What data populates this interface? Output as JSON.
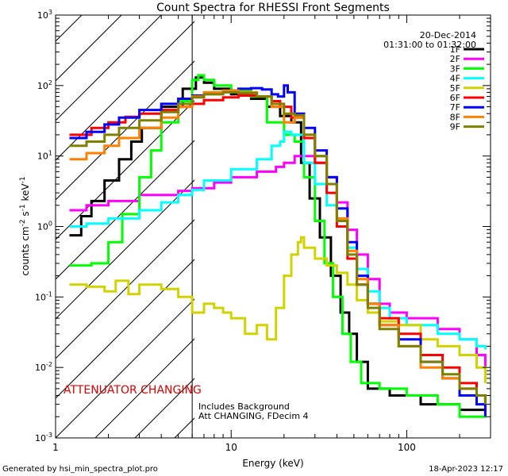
{
  "chart_data": {
    "type": "line",
    "title": "Count Spectra for RHESSI Front Segments",
    "xlabel": "Energy (keV)",
    "ylabel_base": "counts cm",
    "ylabel_exp1": "-2",
    "ylabel_mid1": " s",
    "ylabel_exp2": "-1",
    "ylabel_mid2": " keV",
    "ylabel_exp3": "-1",
    "xscale": "log",
    "yscale": "log",
    "xlim": [
      1,
      300
    ],
    "ylim": [
      0.001,
      1000
    ],
    "x_ticks": [
      {
        "value": 1,
        "label": "1"
      },
      {
        "value": 10,
        "label": "10"
      },
      {
        "value": 100,
        "label": "100"
      }
    ],
    "y_ticks": [
      {
        "value": 0.001,
        "base": "10",
        "exp": "-3"
      },
      {
        "value": 0.01,
        "base": "10",
        "exp": "-2"
      },
      {
        "value": 0.1,
        "base": "10",
        "exp": "-1"
      },
      {
        "value": 1,
        "base": "10",
        "exp": "0"
      },
      {
        "value": 10,
        "base": "10",
        "exp": "1"
      },
      {
        "value": 100,
        "base": "10",
        "exp": "2"
      },
      {
        "value": 1000,
        "base": "10",
        "exp": "3"
      }
    ],
    "attenuator_line_kev": 6,
    "legend_position": "top-right",
    "series": [
      {
        "name": "1F",
        "color": "#000000",
        "points": [
          [
            1.2,
            0.75
          ],
          [
            1.4,
            1.4
          ],
          [
            1.6,
            2.3
          ],
          [
            1.9,
            4.5
          ],
          [
            2.3,
            9
          ],
          [
            2.7,
            16
          ],
          [
            3.1,
            25
          ],
          [
            4,
            50
          ],
          [
            5.3,
            90
          ],
          [
            6.3,
            130
          ],
          [
            7,
            110
          ],
          [
            8,
            90
          ],
          [
            10,
            75
          ],
          [
            13,
            65
          ],
          [
            16,
            50
          ],
          [
            19,
            37
          ],
          [
            22,
            30
          ],
          [
            25,
            8
          ],
          [
            28,
            2.5
          ],
          [
            32,
            0.7
          ],
          [
            37,
            0.2
          ],
          [
            42,
            0.06
          ],
          [
            47,
            0.03
          ],
          [
            52,
            0.012
          ],
          [
            60,
            0.005
          ],
          [
            80,
            0.004
          ],
          [
            120,
            0.003
          ],
          [
            200,
            0.0025
          ],
          [
            280,
            0.0025
          ]
        ]
      },
      {
        "name": "2F",
        "color": "#ff00ff",
        "points": [
          [
            1.2,
            1.7
          ],
          [
            1.5,
            2.0
          ],
          [
            2,
            2.3
          ],
          [
            3,
            2.8
          ],
          [
            5,
            3.2
          ],
          [
            6,
            3.5
          ],
          [
            8,
            4.2
          ],
          [
            10,
            5
          ],
          [
            14,
            6
          ],
          [
            18,
            7
          ],
          [
            20,
            8
          ],
          [
            23,
            10
          ],
          [
            26,
            10
          ],
          [
            30,
            8
          ],
          [
            35,
            5
          ],
          [
            40,
            2.2
          ],
          [
            46,
            0.9
          ],
          [
            52,
            0.4
          ],
          [
            60,
            0.18
          ],
          [
            70,
            0.08
          ],
          [
            80,
            0.06
          ],
          [
            100,
            0.05
          ],
          [
            150,
            0.035
          ],
          [
            200,
            0.025
          ],
          [
            250,
            0.015
          ],
          [
            280,
            0.01
          ]
        ]
      },
      {
        "name": "3F",
        "color": "#00ff00",
        "points": [
          [
            1.2,
            0.28
          ],
          [
            1.6,
            0.3
          ],
          [
            2,
            0.6
          ],
          [
            2.4,
            1.5
          ],
          [
            3,
            5
          ],
          [
            3.5,
            12
          ],
          [
            4,
            30
          ],
          [
            5,
            60
          ],
          [
            6,
            120
          ],
          [
            6.5,
            140
          ],
          [
            7,
            120
          ],
          [
            8,
            100
          ],
          [
            10,
            85
          ],
          [
            13,
            70
          ],
          [
            16,
            30
          ],
          [
            20,
            20
          ],
          [
            23,
            16
          ],
          [
            26,
            5
          ],
          [
            30,
            1.2
          ],
          [
            34,
            0.3
          ],
          [
            38,
            0.1
          ],
          [
            43,
            0.03
          ],
          [
            48,
            0.012
          ],
          [
            55,
            0.006
          ],
          [
            70,
            0.005
          ],
          [
            100,
            0.004
          ],
          [
            150,
            0.003
          ],
          [
            200,
            0.002
          ],
          [
            280,
            0.0022
          ]
        ]
      },
      {
        "name": "4F",
        "color": "#00ffff",
        "points": [
          [
            1.2,
            1.0
          ],
          [
            1.5,
            1.1
          ],
          [
            2,
            1.3
          ],
          [
            3,
            1.7
          ],
          [
            4,
            2.2
          ],
          [
            5,
            2.8
          ],
          [
            6,
            3.3
          ],
          [
            7,
            4.5
          ],
          [
            10,
            6.5
          ],
          [
            14,
            9
          ],
          [
            17,
            14
          ],
          [
            19,
            16
          ],
          [
            20,
            22
          ],
          [
            22,
            20
          ],
          [
            26,
            8
          ],
          [
            30,
            4
          ],
          [
            35,
            2
          ],
          [
            40,
            1.0
          ],
          [
            46,
            0.5
          ],
          [
            52,
            0.25
          ],
          [
            60,
            0.12
          ],
          [
            70,
            0.07
          ],
          [
            80,
            0.05
          ],
          [
            100,
            0.04
          ],
          [
            150,
            0.03
          ],
          [
            200,
            0.025
          ],
          [
            250,
            0.02
          ],
          [
            280,
            0.018
          ]
        ]
      },
      {
        "name": "5F",
        "color": "#d2d200",
        "points": [
          [
            1.2,
            0.15
          ],
          [
            1.5,
            0.14
          ],
          [
            1.9,
            0.12
          ],
          [
            2.2,
            0.17
          ],
          [
            2.6,
            0.11
          ],
          [
            3,
            0.15
          ],
          [
            3.5,
            0.15
          ],
          [
            4,
            0.13
          ],
          [
            5,
            0.1
          ],
          [
            6,
            0.06
          ],
          [
            7,
            0.08
          ],
          [
            8,
            0.07
          ],
          [
            9,
            0.06
          ],
          [
            10,
            0.05
          ],
          [
            12,
            0.03
          ],
          [
            14,
            0.04
          ],
          [
            16,
            0.025
          ],
          [
            18,
            0.07
          ],
          [
            20,
            0.2
          ],
          [
            22,
            0.4
          ],
          [
            24,
            0.6
          ],
          [
            25,
            0.7
          ],
          [
            26,
            0.5
          ],
          [
            30,
            0.35
          ],
          [
            35,
            0.28
          ],
          [
            40,
            0.22
          ],
          [
            46,
            0.15
          ],
          [
            52,
            0.09
          ],
          [
            60,
            0.06
          ],
          [
            70,
            0.045
          ],
          [
            90,
            0.04
          ],
          [
            120,
            0.025
          ],
          [
            150,
            0.02
          ],
          [
            200,
            0.015
          ],
          [
            250,
            0.01
          ],
          [
            280,
            0.006
          ]
        ]
      },
      {
        "name": "6F",
        "color": "#ff0000",
        "points": [
          [
            1.2,
            20
          ],
          [
            1.6,
            25
          ],
          [
            2,
            30
          ],
          [
            2.5,
            36
          ],
          [
            3,
            40
          ],
          [
            4,
            45
          ],
          [
            5,
            50
          ],
          [
            6,
            55
          ],
          [
            7,
            62
          ],
          [
            9,
            68
          ],
          [
            11,
            72
          ],
          [
            14,
            70
          ],
          [
            17,
            60
          ],
          [
            19,
            50
          ],
          [
            22,
            35
          ],
          [
            26,
            18
          ],
          [
            30,
            8
          ],
          [
            35,
            3
          ],
          [
            40,
            1.0
          ],
          [
            46,
            0.35
          ],
          [
            52,
            0.15
          ],
          [
            60,
            0.08
          ],
          [
            70,
            0.05
          ],
          [
            90,
            0.03
          ],
          [
            120,
            0.015
          ],
          [
            160,
            0.01
          ],
          [
            200,
            0.006
          ],
          [
            250,
            0.004
          ],
          [
            280,
            0.003
          ]
        ]
      },
      {
        "name": "7F",
        "color": "#0000ff",
        "points": [
          [
            1.2,
            18
          ],
          [
            1.5,
            22
          ],
          [
            1.9,
            28
          ],
          [
            2.3,
            35
          ],
          [
            3,
            45
          ],
          [
            4,
            55
          ],
          [
            5,
            65
          ],
          [
            6,
            72
          ],
          [
            7,
            78
          ],
          [
            9,
            85
          ],
          [
            11,
            90
          ],
          [
            13,
            92
          ],
          [
            15,
            88
          ],
          [
            17,
            75
          ],
          [
            18.5,
            70
          ],
          [
            20,
            100
          ],
          [
            21,
            80
          ],
          [
            23,
            40
          ],
          [
            26,
            25
          ],
          [
            30,
            12
          ],
          [
            35,
            5
          ],
          [
            40,
            1.8
          ],
          [
            46,
            0.6
          ],
          [
            52,
            0.2
          ],
          [
            60,
            0.08
          ],
          [
            70,
            0.04
          ],
          [
            90,
            0.025
          ],
          [
            120,
            0.012
          ],
          [
            160,
            0.007
          ],
          [
            200,
            0.004
          ],
          [
            250,
            0.003
          ],
          [
            280,
            0.002
          ]
        ]
      },
      {
        "name": "8F",
        "color": "#ff8000",
        "points": [
          [
            1.2,
            9
          ],
          [
            1.5,
            11
          ],
          [
            1.9,
            14
          ],
          [
            2.3,
            18
          ],
          [
            3,
            25
          ],
          [
            4,
            35
          ],
          [
            5,
            50
          ],
          [
            6,
            70
          ],
          [
            7,
            80
          ],
          [
            9,
            85
          ],
          [
            11,
            80
          ],
          [
            14,
            70
          ],
          [
            17,
            50
          ],
          [
            20,
            30
          ],
          [
            23,
            35
          ],
          [
            26,
            20
          ],
          [
            30,
            10
          ],
          [
            35,
            4
          ],
          [
            40,
            1.3
          ],
          [
            46,
            0.45
          ],
          [
            52,
            0.18
          ],
          [
            60,
            0.08
          ],
          [
            70,
            0.04
          ],
          [
            90,
            0.02
          ],
          [
            120,
            0.01
          ],
          [
            160,
            0.007
          ],
          [
            200,
            0.005
          ],
          [
            250,
            0.004
          ],
          [
            280,
            0.004
          ]
        ]
      },
      {
        "name": "9F",
        "color": "#808000",
        "points": [
          [
            1.2,
            14
          ],
          [
            1.5,
            16
          ],
          [
            1.9,
            20
          ],
          [
            2.3,
            25
          ],
          [
            3,
            32
          ],
          [
            4,
            42
          ],
          [
            5,
            55
          ],
          [
            6,
            68
          ],
          [
            7,
            75
          ],
          [
            9,
            80
          ],
          [
            11,
            78
          ],
          [
            14,
            70
          ],
          [
            17,
            55
          ],
          [
            20,
            40
          ],
          [
            23,
            38
          ],
          [
            26,
            20
          ],
          [
            30,
            10
          ],
          [
            35,
            4
          ],
          [
            40,
            1.2
          ],
          [
            46,
            0.4
          ],
          [
            52,
            0.15
          ],
          [
            60,
            0.07
          ],
          [
            70,
            0.035
          ],
          [
            90,
            0.02
          ],
          [
            120,
            0.012
          ],
          [
            160,
            0.008
          ],
          [
            200,
            0.005
          ],
          [
            250,
            0.004
          ],
          [
            280,
            0.003
          ]
        ]
      }
    ],
    "annotations": {
      "date": "20-Dec-2014",
      "time_range": "01:31:00 to 01:32:00",
      "attenuator": "ATTENUATOR CHANGING",
      "attenuator_color": "#dd0000",
      "background_note": "Includes Background",
      "att_note": "Att CHANGING, FDecim 4"
    }
  },
  "footer": {
    "generator": "Generated by hsi_min_spectra_plot.pro",
    "timestamp": "18-Apr-2023 12:17"
  }
}
